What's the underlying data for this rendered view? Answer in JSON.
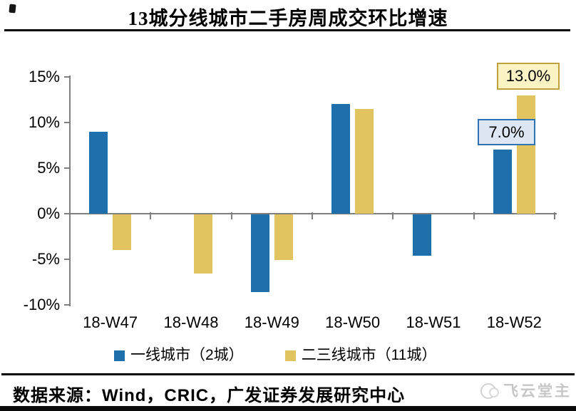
{
  "title": "13城分线城市二手房周成交环比增速",
  "chart_data": {
    "type": "bar",
    "title": "13城分线城市二手房周成交环比增速",
    "categories": [
      "18-W47",
      "18-W48",
      "18-W49",
      "18-W50",
      "18-W51",
      "18-W52"
    ],
    "series": [
      {
        "name": "一线城市（2城）",
        "color": "#1f6fac",
        "values": [
          9.0,
          null,
          -8.5,
          12.0,
          -4.5,
          7.0
        ]
      },
      {
        "name": "二三线城市（11城）",
        "color": "#e1c45f",
        "values": [
          -3.9,
          -6.5,
          -5.0,
          11.5,
          null,
          13.0
        ]
      }
    ],
    "xlabel": "",
    "ylabel": "",
    "ylim": [
      -10,
      15
    ],
    "grid": false,
    "legend_position": "bottom",
    "y_ticks": [
      {
        "value": 15,
        "label": "15%"
      },
      {
        "value": 10,
        "label": "10%"
      },
      {
        "value": 5,
        "label": "5%"
      },
      {
        "value": 0,
        "label": "0%"
      },
      {
        "value": -5,
        "label": "-5%"
      },
      {
        "value": -10,
        "label": "-10%"
      }
    ],
    "annotations": [
      {
        "category": "18-W52",
        "series": "二三线城市（11城）",
        "label": "13.0%",
        "style": "yellow-box"
      },
      {
        "category": "18-W52",
        "series": "一线城市（2城）",
        "label": "7.0%",
        "style": "blue-box"
      }
    ],
    "axis_color": "#7f7f7f"
  },
  "legend": {
    "items": [
      {
        "label": "一线城市（2城）",
        "color": "#1f6fac"
      },
      {
        "label": "二三线城市（11城）",
        "color": "#e1c45f"
      }
    ]
  },
  "footer": {
    "source": "数据来源：Wind，CRIC，广发证券发展研究中心",
    "watermark": "飞云堂主"
  }
}
